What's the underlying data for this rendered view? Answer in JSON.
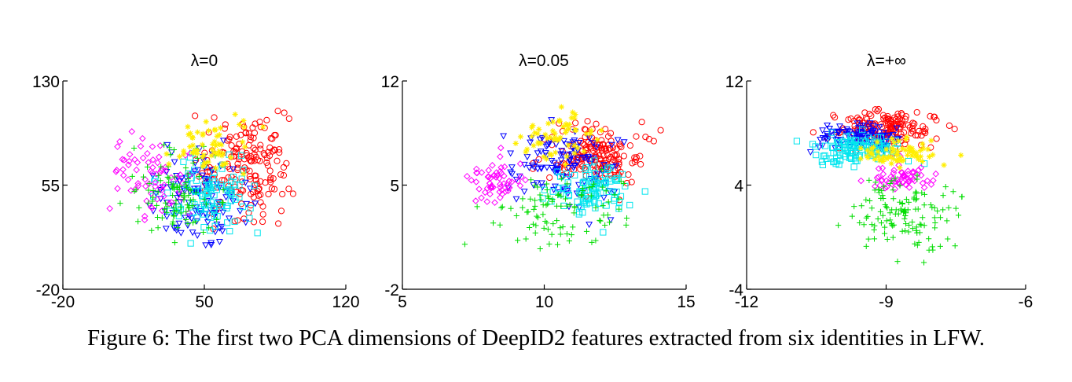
{
  "caption": "Figure 6: The first two PCA dimensions of DeepID2 features extracted from six identities in LFW.",
  "markers": {
    "red": "circle",
    "blue": "triangle-down",
    "cyan": "square",
    "magenta": "diamond",
    "green": "plus",
    "yellow": "star"
  },
  "chart_data": [
    {
      "type": "scatter",
      "title": "λ=0",
      "xlabel": "",
      "ylabel": "",
      "xlim": [
        -20,
        120
      ],
      "ylim": [
        -20,
        130
      ],
      "xticks": [
        "-20",
        "50",
        "120"
      ],
      "yticks": [
        "-20",
        "55",
        "130"
      ],
      "grid": false,
      "series": [
        {
          "color": "#ff0000",
          "marker": "circle",
          "center": [
            70,
            70
          ],
          "spread": [
            11,
            18
          ],
          "count": 170
        },
        {
          "color": "#0000ff",
          "marker": "triangle-down",
          "center": [
            48,
            45
          ],
          "spread": [
            12,
            15
          ],
          "count": 120
        },
        {
          "color": "#00e5ee",
          "marker": "square",
          "center": [
            53,
            47
          ],
          "spread": [
            11,
            13
          ],
          "count": 100
        },
        {
          "color": "#ff00ff",
          "marker": "diamond",
          "center": [
            23,
            62
          ],
          "spread": [
            9,
            14
          ],
          "count": 70
        },
        {
          "color": "#00dd00",
          "marker": "plus",
          "center": [
            36,
            49
          ],
          "spread": [
            11,
            14
          ],
          "count": 100
        },
        {
          "color": "#ffee00",
          "marker": "star",
          "center": [
            52,
            82
          ],
          "spread": [
            9,
            10
          ],
          "count": 60
        }
      ]
    },
    {
      "type": "scatter",
      "title": "λ=0.05",
      "xlabel": "",
      "ylabel": "",
      "xlim": [
        5,
        15
      ],
      "ylim": [
        -2,
        12
      ],
      "xticks": [
        "5",
        "10",
        "15"
      ],
      "yticks": [
        "-2",
        "5",
        "12"
      ],
      "grid": false,
      "series": [
        {
          "color": "#ff0000",
          "marker": "circle",
          "center": [
            11.9,
            6.9
          ],
          "spread": [
            0.75,
            1.1
          ],
          "count": 170
        },
        {
          "color": "#0000ff",
          "marker": "triangle-down",
          "center": [
            10.7,
            6.3
          ],
          "spread": [
            0.9,
            1.3
          ],
          "count": 120
        },
        {
          "color": "#00e5ee",
          "marker": "square",
          "center": [
            11.8,
            4.6
          ],
          "spread": [
            0.8,
            0.9
          ],
          "count": 100
        },
        {
          "color": "#ff00ff",
          "marker": "diamond",
          "center": [
            8.3,
            5.2
          ],
          "spread": [
            0.5,
            0.8
          ],
          "count": 60
        },
        {
          "color": "#00dd00",
          "marker": "plus",
          "center": [
            10.6,
            3.0
          ],
          "spread": [
            1.1,
            1.3
          ],
          "count": 100
        },
        {
          "color": "#ffee00",
          "marker": "star",
          "center": [
            10.3,
            8.2
          ],
          "spread": [
            0.7,
            0.9
          ],
          "count": 60
        }
      ]
    },
    {
      "type": "scatter",
      "title": "λ=+∞",
      "xlabel": "",
      "ylabel": "",
      "xlim": [
        -12,
        -6
      ],
      "ylim": [
        -4,
        12
      ],
      "xticks": [
        "-12",
        "-9",
        "-6"
      ],
      "yticks": [
        "-4",
        "4",
        "12"
      ],
      "grid": false,
      "series": [
        {
          "color": "#ff0000",
          "marker": "circle",
          "center": [
            -9.0,
            8.3
          ],
          "spread": [
            0.55,
            0.65
          ],
          "count": 160
        },
        {
          "color": "#0000ff",
          "marker": "triangle-down",
          "center": [
            -9.6,
            7.7
          ],
          "spread": [
            0.45,
            0.6
          ],
          "count": 100
        },
        {
          "color": "#00e5ee",
          "marker": "square",
          "center": [
            -9.6,
            6.8
          ],
          "spread": [
            0.45,
            0.55
          ],
          "count": 120
        },
        {
          "color": "#ff00ff",
          "marker": "diamond",
          "center": [
            -8.7,
            4.6
          ],
          "spread": [
            0.35,
            0.45
          ],
          "count": 60
        },
        {
          "color": "#00dd00",
          "marker": "plus",
          "center": [
            -8.6,
            1.8
          ],
          "spread": [
            0.55,
            1.6
          ],
          "count": 130
        },
        {
          "color": "#ffee00",
          "marker": "star",
          "center": [
            -8.7,
            6.4
          ],
          "spread": [
            0.4,
            0.55
          ],
          "count": 70
        }
      ]
    }
  ]
}
